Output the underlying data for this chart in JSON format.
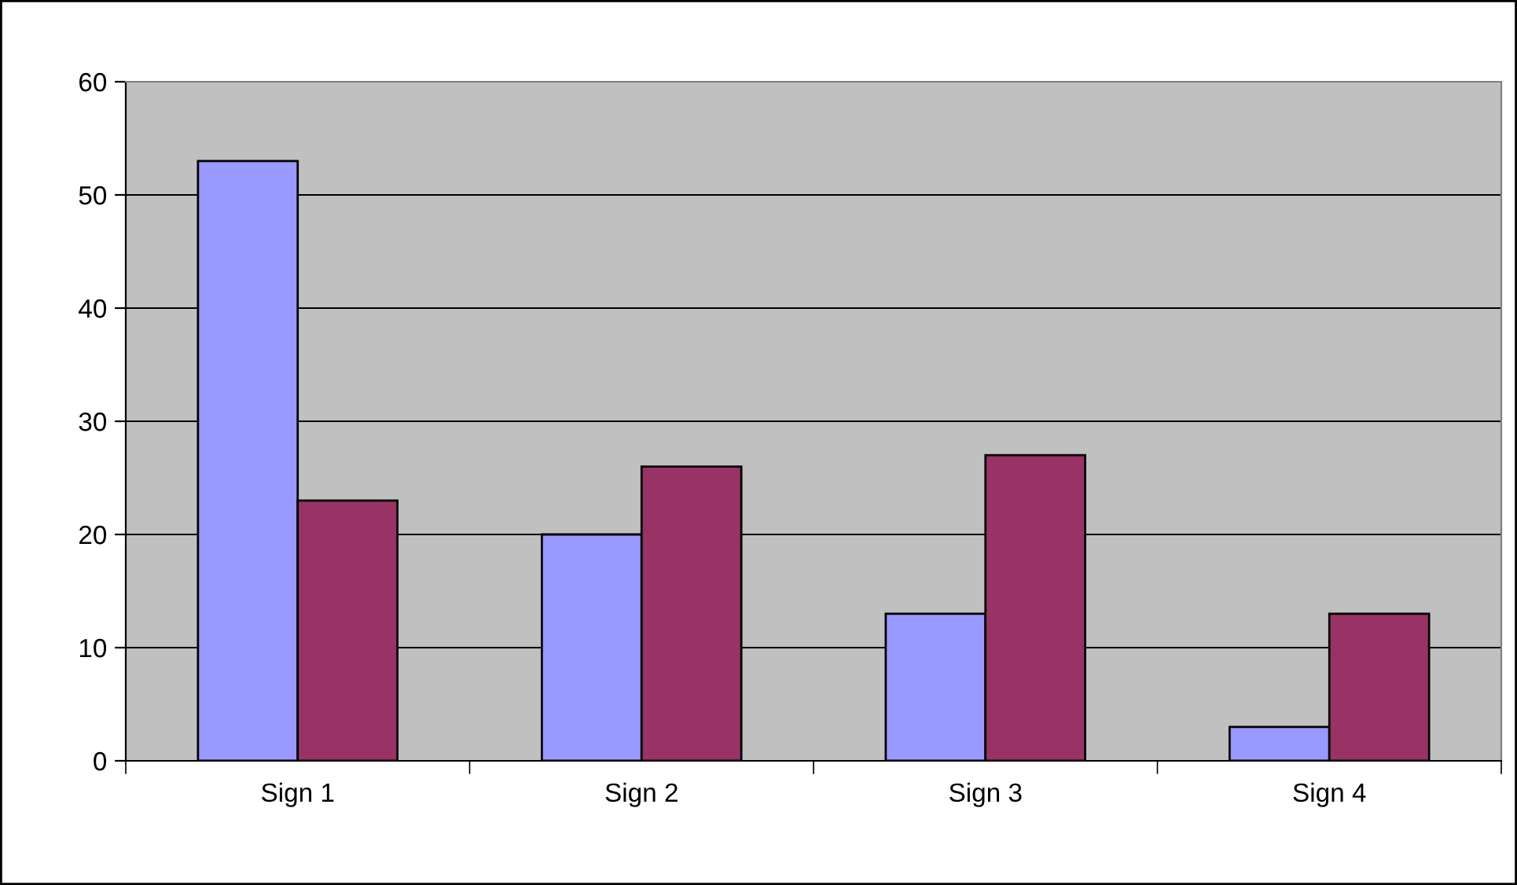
{
  "chart_data": {
    "type": "bar",
    "categories": [
      "Sign 1",
      "Sign 2",
      "Sign 3",
      "Sign 4"
    ],
    "series": [
      {
        "color": "#9999ff",
        "values": [
          53,
          20,
          13,
          3
        ]
      },
      {
        "color": "#993366",
        "values": [
          23,
          26,
          27,
          13
        ]
      }
    ],
    "ylim": [
      0,
      60
    ],
    "yticks": [
      0,
      10,
      20,
      30,
      40,
      50,
      60
    ],
    "grid": "y",
    "legend": false
  }
}
